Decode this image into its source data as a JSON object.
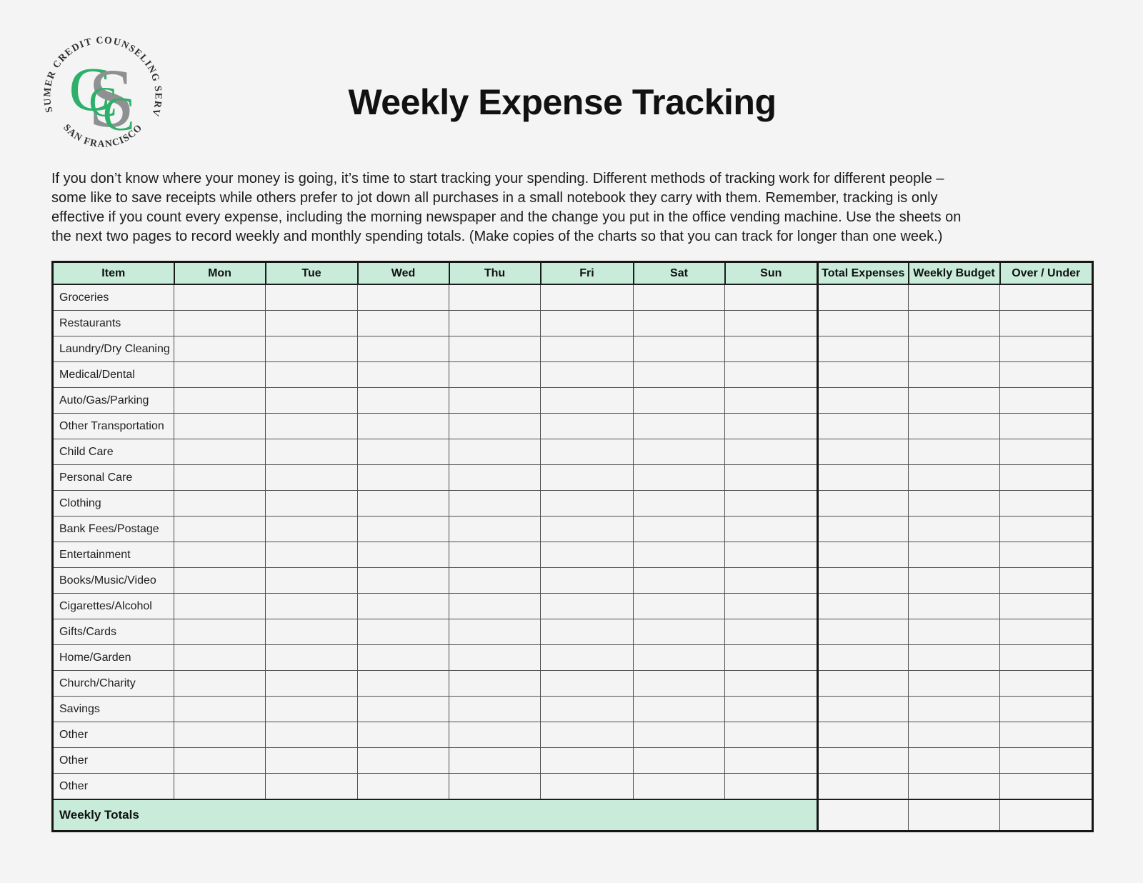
{
  "theme": {
    "page_background": "#f4f4f5",
    "mint": "#c9ecda",
    "logo_green": "#2cb06a",
    "logo_gray": "#8f9091",
    "grid_line": "#4f5052",
    "border_dark": "#161616"
  },
  "logo": {
    "top_text": "CONSUMER CREDIT COUNSELING SERVICE",
    "bottom_text": "· SAN FRANCISCO ·",
    "monogram": [
      "C",
      "S",
      "C",
      "C"
    ]
  },
  "title": "Weekly Expense Tracking",
  "intro": "If you don’t know where your money is going, it’s time to start tracking your spending. Different methods of tracking work for different people –\nsome like to save receipts while others prefer to jot down all purchases in a small notebook they carry with them. Remember, tracking is only\neffective if you count every expense, including the morning newspaper and the change you put in the office vending machine. Use the sheets on\nthe next two pages to record weekly and monthly spending totals. (Make copies of the charts so that you can track for longer than one week.)",
  "table": {
    "columns": [
      "Item",
      "Mon",
      "Tue",
      "Wed",
      "Thu",
      "Fri",
      "Sat",
      "Sun",
      "Total Expenses",
      "Weekly Budget",
      "Over / Under"
    ],
    "rows": [
      "Groceries",
      "Restaurants",
      "Laundry/Dry Cleaning",
      "Medical/Dental",
      "Auto/Gas/Parking",
      "Other Transportation",
      "Child Care",
      "Personal Care",
      "Clothing",
      "Bank Fees/Postage",
      "Entertainment",
      "Books/Music/Video",
      "Cigarettes/Alcohol",
      "Gifts/Cards",
      "Home/Garden",
      "Church/Charity",
      "Savings",
      "Other",
      "Other",
      "Other"
    ],
    "footer_label": "Weekly Totals"
  }
}
